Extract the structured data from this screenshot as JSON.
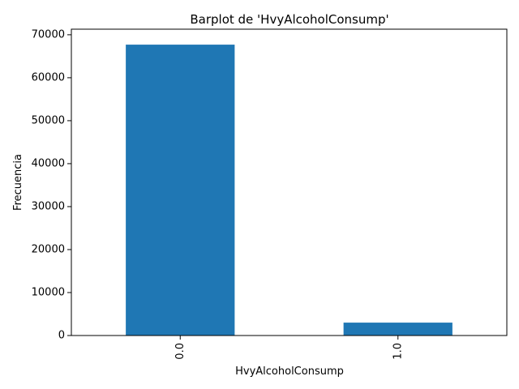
{
  "chart_data": {
    "type": "bar",
    "title": "Barplot de 'HvyAlcoholConsump'",
    "xlabel": "HvyAlcoholConsump",
    "ylabel": "Frecuencia",
    "categories": [
      "0.0",
      "1.0"
    ],
    "values": [
      67700,
      3000
    ],
    "ylim": [
      0,
      71300
    ],
    "yticks": [
      0,
      10000,
      20000,
      30000,
      40000,
      50000,
      60000,
      70000
    ],
    "ytick_labels": [
      "0",
      "10000",
      "20000",
      "30000",
      "40000",
      "50000",
      "60000",
      "70000"
    ],
    "bar_color": "#1f77b4",
    "grid": false,
    "legend": "none"
  }
}
